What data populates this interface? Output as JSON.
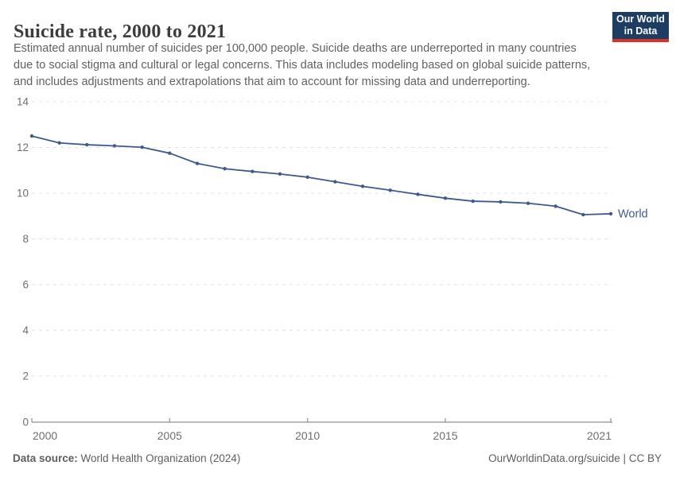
{
  "header": {
    "title": "Suicide rate, 2000 to 2021",
    "subtitle_lines": [
      "Estimated annual number of suicides per 100,000 people. Suicide deaths are underreported in many countries",
      "due to social stigma and cultural or legal concerns. This data includes modeling based on global suicide patterns,",
      "and includes adjustments and extrapolations that aim to account for missing data and underreporting."
    ],
    "logo": {
      "line1": "Our World",
      "line2": "in Data"
    }
  },
  "chart_data": {
    "type": "line",
    "title": "Suicide rate, 2000 to 2021",
    "x": [
      2000,
      2001,
      2002,
      2003,
      2004,
      2005,
      2006,
      2007,
      2008,
      2009,
      2010,
      2011,
      2012,
      2013,
      2014,
      2015,
      2016,
      2017,
      2018,
      2019,
      2020,
      2021
    ],
    "series": [
      {
        "name": "World",
        "color": "#3d5a8f",
        "values": [
          12.5,
          12.2,
          12.12,
          12.07,
          12.01,
          11.75,
          11.3,
          11.07,
          10.95,
          10.84,
          10.7,
          10.5,
          10.3,
          10.13,
          9.95,
          9.78,
          9.65,
          9.62,
          9.56,
          9.43,
          9.06,
          9.1
        ]
      }
    ],
    "xlabel": "",
    "ylabel": "",
    "ylim": [
      0,
      14
    ],
    "yticks": [
      0,
      2,
      4,
      6,
      8,
      10,
      12,
      14
    ],
    "xticks": [
      2000,
      2005,
      2010,
      2015,
      2021
    ],
    "grid": "horizontal-dashed",
    "legend_position": "end-of-line-label"
  },
  "footer": {
    "source_label": "Data source:",
    "source_value": " World Health Organization (2024)",
    "attribution": "OurWorldinData.org/suicide | CC BY"
  },
  "colors": {
    "line_blue": "#3d5a8f",
    "logo_navy": "#1d3d63",
    "logo_red": "#d73426",
    "grid": "#e2e2e2",
    "axis": "#8f8f8f",
    "tick_text": "#6e6e6e",
    "title_text": "#3d3d3d",
    "subtitle_text": "#616161",
    "footer_text": "#5e5e5e"
  }
}
